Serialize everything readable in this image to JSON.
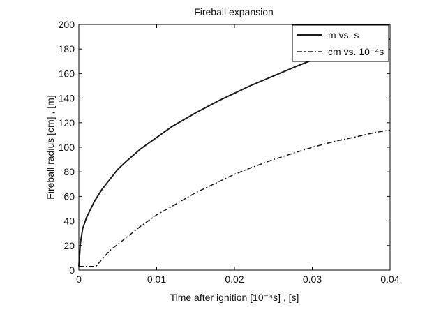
{
  "chart_data": {
    "type": "line",
    "title": "Fireball expansion",
    "xlabel": "Time after ignition [10⁻⁴s] , [s]",
    "ylabel": "Fireball radius [cm] , [m]",
    "xlim": [
      0,
      0.04
    ],
    "ylim": [
      0,
      200
    ],
    "x_ticks": [
      "0",
      "0.01",
      "0.02",
      "0.03",
      "0.04"
    ],
    "y_ticks": [
      "0",
      "20",
      "40",
      "60",
      "80",
      "100",
      "120",
      "140",
      "160",
      "180",
      "200"
    ],
    "grid": false,
    "legend_position": "top-right",
    "series": [
      {
        "name": "m vs. s",
        "style": "solid",
        "color": "#1a1a1a",
        "x": [
          0,
          0.0002,
          0.0005,
          0.001,
          0.002,
          0.003,
          0.004,
          0.005,
          0.006,
          0.008,
          0.01,
          0.012,
          0.015,
          0.018,
          0.02,
          0.022,
          0.025,
          0.028,
          0.03,
          0.033,
          0.036,
          0.038,
          0.04
        ],
        "values": [
          3,
          22,
          34,
          43,
          56,
          66,
          74,
          82,
          88,
          99,
          108,
          117,
          128,
          138,
          144,
          150,
          158,
          166,
          171,
          177,
          183,
          186,
          188
        ]
      },
      {
        "name": "cm vs. 10⁻⁴s",
        "style": "dashdot",
        "color": "#1a1a1a",
        "x": [
          0,
          0.001,
          0.0022,
          0.003,
          0.004,
          0.005,
          0.006,
          0.008,
          0.01,
          0.012,
          0.015,
          0.018,
          0.02,
          0.022,
          0.025,
          0.028,
          0.03,
          0.033,
          0.036,
          0.038,
          0.04
        ],
        "values": [
          3,
          3,
          3,
          9,
          16,
          21,
          26,
          36,
          45,
          52,
          63,
          72,
          78,
          83,
          90,
          96,
          100,
          105,
          109,
          112,
          114
        ]
      }
    ]
  }
}
